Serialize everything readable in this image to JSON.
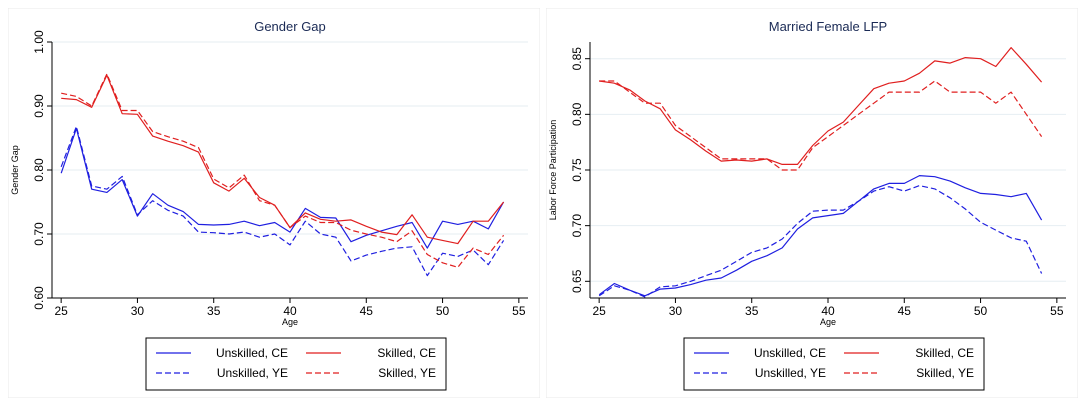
{
  "chart_data": [
    {
      "type": "line",
      "title": "Gender Gap",
      "xlabel": "Age",
      "ylabel": "Gender Gap",
      "xlim": [
        25,
        54
      ],
      "ylim": [
        0.6,
        1.0
      ],
      "xticks": [
        25,
        30,
        35,
        40,
        45,
        50,
        55
      ],
      "yticks": [
        0.6,
        0.7,
        0.8,
        0.9,
        1.0
      ],
      "ytick_labels": [
        "0.60",
        "0.70",
        "0.80",
        "0.90",
        "1.00"
      ],
      "grid": true,
      "legend_placement": "bottom",
      "x": [
        25,
        26,
        27,
        28,
        29,
        30,
        31,
        32,
        33,
        34,
        35,
        36,
        37,
        38,
        39,
        40,
        41,
        42,
        43,
        44,
        45,
        46,
        47,
        48,
        49,
        50,
        51,
        52,
        53,
        54
      ],
      "series": [
        {
          "name": "Unskilled, CE",
          "color": "#1f1fe0",
          "dash": "solid",
          "values": [
            0.795,
            0.865,
            0.77,
            0.765,
            0.785,
            0.728,
            0.763,
            0.745,
            0.735,
            0.715,
            0.714,
            0.715,
            0.72,
            0.713,
            0.718,
            0.703,
            0.74,
            0.726,
            0.725,
            0.688,
            0.698,
            0.705,
            0.712,
            0.718,
            0.678,
            0.72,
            0.715,
            0.72,
            0.708,
            0.75
          ]
        },
        {
          "name": "Skilled, CE",
          "color": "#e01f1f",
          "dash": "solid",
          "values": [
            0.912,
            0.91,
            0.898,
            0.948,
            0.888,
            0.887,
            0.853,
            0.845,
            0.838,
            0.828,
            0.78,
            0.767,
            0.787,
            0.757,
            0.745,
            0.71,
            0.733,
            0.723,
            0.72,
            0.722,
            0.712,
            0.703,
            0.699,
            0.73,
            0.695,
            0.69,
            0.685,
            0.72,
            0.72,
            0.75
          ]
        },
        {
          "name": "Unskilled, YE",
          "color": "#1f1fe0",
          "dash": "dashed",
          "values": [
            0.805,
            0.868,
            0.775,
            0.77,
            0.79,
            0.73,
            0.752,
            0.737,
            0.728,
            0.703,
            0.702,
            0.7,
            0.703,
            0.695,
            0.7,
            0.683,
            0.72,
            0.7,
            0.695,
            0.658,
            0.667,
            0.673,
            0.678,
            0.68,
            0.635,
            0.67,
            0.665,
            0.675,
            0.652,
            0.69
          ]
        },
        {
          "name": "Skilled, YE",
          "color": "#e01f1f",
          "dash": "dashed",
          "values": [
            0.92,
            0.915,
            0.9,
            0.95,
            0.893,
            0.893,
            0.86,
            0.852,
            0.845,
            0.835,
            0.786,
            0.772,
            0.792,
            0.752,
            0.745,
            0.71,
            0.728,
            0.718,
            0.718,
            0.706,
            0.7,
            0.695,
            0.688,
            0.705,
            0.668,
            0.655,
            0.648,
            0.678,
            0.668,
            0.698
          ]
        }
      ]
    },
    {
      "type": "line",
      "title": "Married Female LFP",
      "xlabel": "Age",
      "ylabel": "Labor Force Participation",
      "xlim": [
        25,
        54
      ],
      "ylim": [
        0.635,
        0.865
      ],
      "xticks": [
        25,
        30,
        35,
        40,
        45,
        50,
        55
      ],
      "yticks": [
        0.65,
        0.7,
        0.75,
        0.8,
        0.85
      ],
      "ytick_labels": [
        "0.65",
        "0.70",
        "0.75",
        "0.80",
        "0.85"
      ],
      "grid": true,
      "legend_placement": "bottom",
      "x": [
        25,
        26,
        27,
        28,
        29,
        30,
        31,
        32,
        33,
        34,
        35,
        36,
        37,
        38,
        39,
        40,
        41,
        42,
        43,
        44,
        45,
        46,
        47,
        48,
        49,
        50,
        51,
        52,
        53,
        54
      ],
      "series": [
        {
          "name": "Unskilled, CE",
          "color": "#1f1fe0",
          "dash": "solid",
          "values": [
            0.638,
            0.648,
            0.642,
            0.637,
            0.643,
            0.644,
            0.647,
            0.651,
            0.653,
            0.66,
            0.668,
            0.673,
            0.68,
            0.697,
            0.707,
            0.709,
            0.711,
            0.722,
            0.733,
            0.738,
            0.738,
            0.745,
            0.744,
            0.74,
            0.734,
            0.729,
            0.728,
            0.726,
            0.729,
            0.705
          ]
        },
        {
          "name": "Skilled, CE",
          "color": "#e01f1f",
          "dash": "solid",
          "values": [
            0.83,
            0.828,
            0.822,
            0.812,
            0.805,
            0.786,
            0.777,
            0.767,
            0.758,
            0.759,
            0.758,
            0.76,
            0.755,
            0.755,
            0.772,
            0.785,
            0.793,
            0.808,
            0.823,
            0.828,
            0.83,
            0.837,
            0.848,
            0.846,
            0.851,
            0.85,
            0.843,
            0.86,
            0.845,
            0.829
          ]
        },
        {
          "name": "Unskilled, YE",
          "color": "#1f1fe0",
          "dash": "dashed",
          "values": [
            0.637,
            0.646,
            0.642,
            0.636,
            0.645,
            0.646,
            0.65,
            0.655,
            0.66,
            0.668,
            0.676,
            0.68,
            0.688,
            0.702,
            0.713,
            0.714,
            0.714,
            0.722,
            0.731,
            0.735,
            0.731,
            0.736,
            0.733,
            0.725,
            0.715,
            0.703,
            0.696,
            0.689,
            0.686,
            0.657
          ]
        },
        {
          "name": "Skilled, YE",
          "color": "#e01f1f",
          "dash": "dashed",
          "values": [
            0.83,
            0.83,
            0.82,
            0.81,
            0.81,
            0.79,
            0.78,
            0.77,
            0.76,
            0.76,
            0.76,
            0.76,
            0.75,
            0.75,
            0.77,
            0.78,
            0.79,
            0.8,
            0.81,
            0.82,
            0.82,
            0.82,
            0.83,
            0.82,
            0.82,
            0.82,
            0.81,
            0.82,
            0.8,
            0.78
          ]
        }
      ]
    }
  ]
}
